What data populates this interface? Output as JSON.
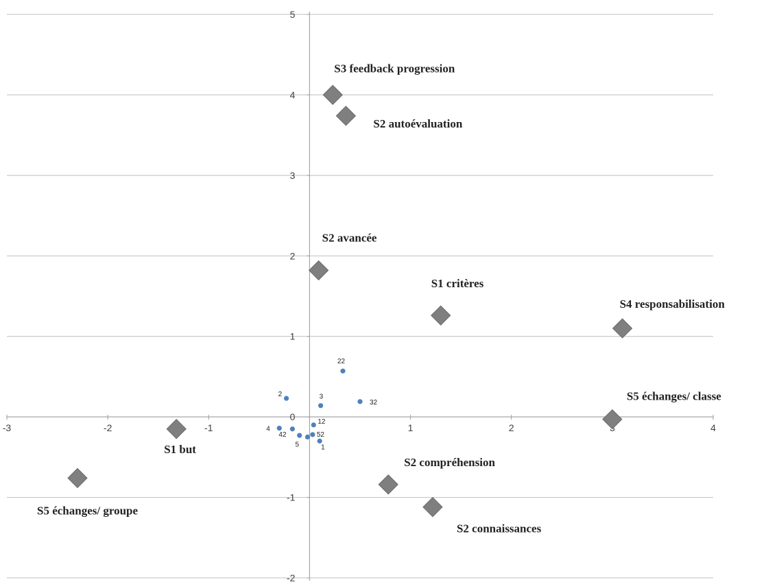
{
  "chart_data": {
    "type": "scatter",
    "xlim": [
      -3,
      4
    ],
    "ylim": [
      -2,
      5
    ],
    "x_ticks": [
      -3,
      -2,
      -1,
      0,
      1,
      2,
      3,
      4
    ],
    "y_ticks": [
      -2,
      -1,
      0,
      1,
      2,
      3,
      4,
      5
    ],
    "grid": "horizontal",
    "legend": "none",
    "series": [
      {
        "marker": "diamond",
        "color": "#7f7f7f",
        "points": [
          {
            "label": "S3 feedback progression",
            "x": 0.23,
            "y": 4.0
          },
          {
            "label": "S2 autoévaluation",
            "x": 0.36,
            "y": 3.74
          },
          {
            "label": "S2 avancée",
            "x": 0.09,
            "y": 1.82
          },
          {
            "label": "S1 critères",
            "x": 1.3,
            "y": 1.26
          },
          {
            "label": "S4 responsabilisation",
            "x": 3.1,
            "y": 1.1
          },
          {
            "label": "S5 échanges/ classe",
            "x": 3.0,
            "y": -0.03
          },
          {
            "label": "S1 but",
            "x": -1.32,
            "y": -0.15
          },
          {
            "label": "S5 échanges/ groupe",
            "x": -2.3,
            "y": -0.76
          },
          {
            "label": "S2 compréhension",
            "x": 0.78,
            "y": -0.84
          },
          {
            "label": "S2 connaissances",
            "x": 1.22,
            "y": -1.12
          }
        ]
      },
      {
        "marker": "circle",
        "color": "#4f81bd",
        "points": [
          {
            "label": "22",
            "x": 0.33,
            "y": 0.57
          },
          {
            "label": "2",
            "x": -0.23,
            "y": 0.23
          },
          {
            "label": "3",
            "x": 0.11,
            "y": 0.14
          },
          {
            "label": "32",
            "x": 0.5,
            "y": 0.19
          },
          {
            "label": "12",
            "x": 0.04,
            "y": -0.1
          },
          {
            "label": "4",
            "x": -0.3,
            "y": -0.14
          },
          {
            "label": "42",
            "x": -0.17,
            "y": -0.15
          },
          {
            "label": "",
            "x": -0.1,
            "y": -0.23
          },
          {
            "label": "52",
            "x": 0.03,
            "y": -0.22
          },
          {
            "label": "5",
            "x": -0.02,
            "y": -0.25
          },
          {
            "label": "1",
            "x": 0.1,
            "y": -0.3
          }
        ]
      }
    ]
  }
}
